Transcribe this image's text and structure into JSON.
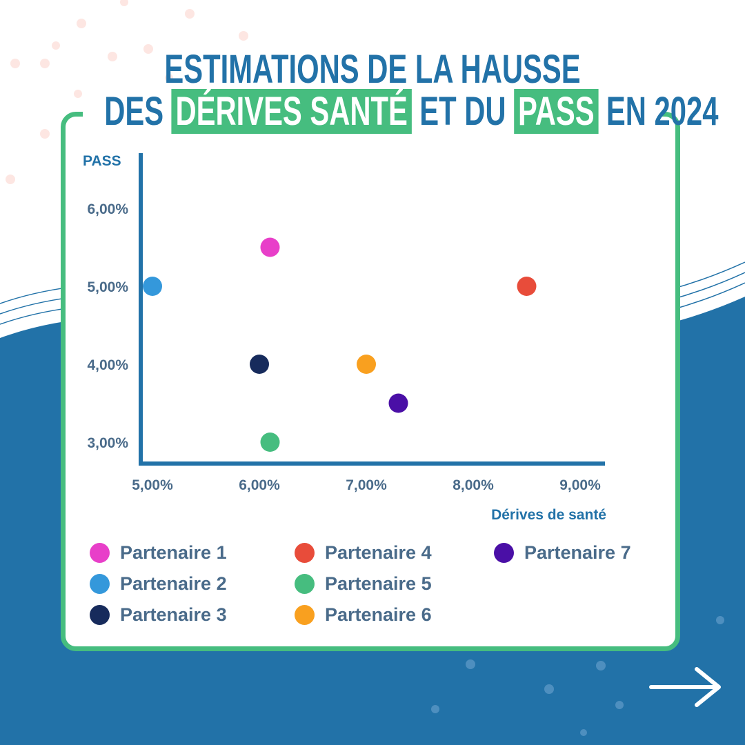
{
  "title": {
    "line1": "ESTIMATIONS DE LA HAUSSE",
    "line2_pre": "DES",
    "line2_hl1": "DÉRIVES SANTÉ",
    "line2_mid": "ET DU",
    "line2_hl2": "PASS",
    "line2_post": "EN 2024"
  },
  "colors": {
    "primary": "#2272a8",
    "accent": "#46bd7f",
    "text": "#4a6b8a"
  },
  "chart_data": {
    "type": "scatter",
    "title": "Estimations de la hausse des dérives santé et du PASS en 2024",
    "xlabel": "Dérives de santé",
    "ylabel": "PASS",
    "xlim": [
      5,
      9.2
    ],
    "ylim": [
      2.7,
      6.6
    ],
    "xticks": [
      5,
      6,
      7,
      8,
      9
    ],
    "xtick_labels": [
      "5,00%",
      "6,00%",
      "7,00%",
      "8,00%",
      "9,00%"
    ],
    "yticks": [
      3,
      4,
      5,
      6
    ],
    "ytick_labels": [
      "3,00%",
      "4,00%",
      "5,00%",
      "6,00%"
    ],
    "grid": false,
    "legend_placement": "bottom",
    "series": [
      {
        "name": "Partenaire 1",
        "color": "#e83fc9",
        "x": 6.1,
        "y": 5.5
      },
      {
        "name": "Partenaire 2",
        "color": "#3498db",
        "x": 5.0,
        "y": 5.0
      },
      {
        "name": "Partenaire 3",
        "color": "#172b5c",
        "x": 6.0,
        "y": 4.0
      },
      {
        "name": "Partenaire 4",
        "color": "#e84c3a",
        "x": 8.5,
        "y": 5.0
      },
      {
        "name": "Partenaire 5",
        "color": "#46bd7f",
        "x": 6.1,
        "y": 3.0
      },
      {
        "name": "Partenaire 6",
        "color": "#f9a01f",
        "x": 7.0,
        "y": 4.0
      },
      {
        "name": "Partenaire 7",
        "color": "#4a0fa6",
        "x": 7.3,
        "y": 3.5
      }
    ]
  }
}
